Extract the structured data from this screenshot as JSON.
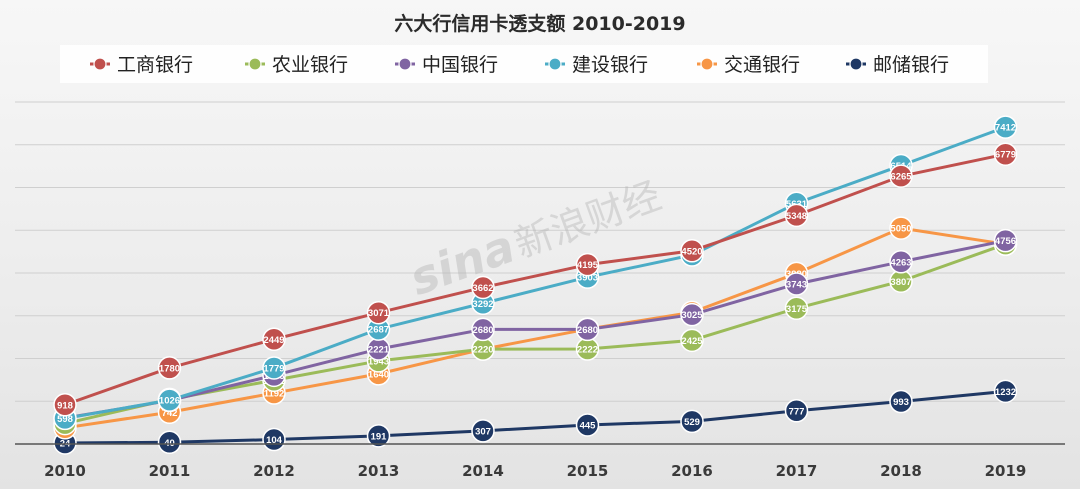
{
  "chart_data": {
    "type": "line",
    "title": "六大行信用卡透支额 2010-2019",
    "xlabel": "",
    "ylabel": "",
    "x": [
      "2010",
      "2011",
      "2012",
      "2013",
      "2014",
      "2015",
      "2016",
      "2017",
      "2018",
      "2019"
    ],
    "ylim": [
      0,
      8000
    ],
    "grid": true,
    "legend": "top",
    "series": [
      {
        "name": "工商银行",
        "color": "#c0504d",
        "values": [
          918,
          1780,
          2449,
          3071,
          3662,
          4195,
          4520,
          5348,
          6265,
          6779
        ]
      },
      {
        "name": "农业银行",
        "color": "#9bbb59",
        "values": [
          478,
          1044,
          1491,
          1943,
          2220,
          2222,
          2425,
          3175,
          3807,
          4674
        ]
      },
      {
        "name": "中国银行",
        "color": "#8064a2",
        "values": [
          608,
          1016,
          1606,
          2221,
          2680,
          2680,
          3025,
          3743,
          4263,
          4756
        ]
      },
      {
        "name": "建设银行",
        "color": "#4bacc6",
        "values": [
          598,
          1026,
          1779,
          2687,
          3292,
          3903,
          4420,
          5631,
          6514,
          7412
        ]
      },
      {
        "name": "交通银行",
        "color": "#f79646",
        "values": [
          379,
          742,
          1192,
          1640,
          2218,
          2688,
          3079,
          3990,
          5050,
          4674
        ]
      },
      {
        "name": "邮储银行",
        "color": "#1f3864",
        "values": [
          24,
          40,
          104,
          191,
          307,
          445,
          529,
          777,
          993,
          1232
        ]
      }
    ]
  },
  "watermark": {
    "logo": "sina",
    "text": "新浪财经"
  }
}
